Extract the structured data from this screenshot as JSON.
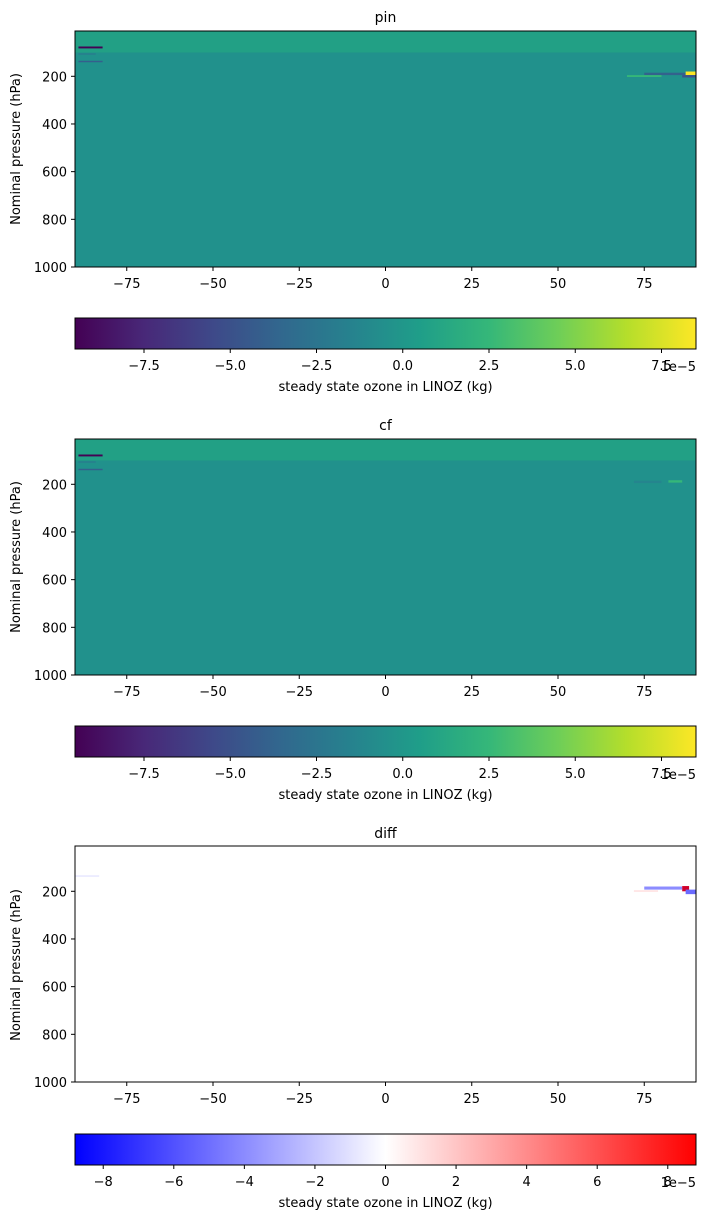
{
  "chart_data": [
    {
      "type": "heatmap",
      "title": "pin",
      "ylabel": "Nominal pressure (hPa)",
      "xlim": [
        -90,
        90
      ],
      "ylim": [
        1000,
        10
      ],
      "xticks": [
        -75,
        -50,
        -25,
        0,
        25,
        50,
        75
      ],
      "xtick_labels": [
        "−75",
        "−50",
        "−25",
        "0",
        "25",
        "50",
        "75"
      ],
      "yticks": [
        200,
        400,
        600,
        800,
        1000
      ],
      "ytick_labels": [
        "200",
        "400",
        "600",
        "800",
        "1000"
      ],
      "colormap": "viridis",
      "background_color": "#21918c",
      "features": [
        {
          "x": [
            -90,
            90
          ],
          "p": [
            10,
            100
          ],
          "color": "#22a085"
        },
        {
          "x": [
            -89,
            -82
          ],
          "p": [
            75,
            83
          ],
          "color": "#440154"
        },
        {
          "x": [
            -89,
            -82
          ],
          "p": [
            135,
            141
          ],
          "color": "#355f8d"
        },
        {
          "x": [
            -89,
            -84
          ],
          "p": [
            104,
            109
          ],
          "color": "#2a788e"
        },
        {
          "x": [
            75,
            87
          ],
          "p": [
            185,
            195
          ],
          "color": "#33628d"
        },
        {
          "x": [
            87,
            90
          ],
          "p": [
            180,
            195
          ],
          "color": "#fde725"
        },
        {
          "x": [
            86,
            90
          ],
          "p": [
            195,
            205
          ],
          "color": "#3b528b"
        },
        {
          "x": [
            70,
            80
          ],
          "p": [
            195,
            203
          ],
          "color": "#35b779"
        }
      ],
      "colorbar": {
        "label": "steady state ozone in LINOZ (kg)",
        "range": [
          -9.5,
          8.5
        ],
        "ticks": [
          -7.5,
          -5.0,
          -2.5,
          0.0,
          2.5,
          5.0,
          7.5
        ],
        "tick_labels": [
          "−7.5",
          "−5.0",
          "−2.5",
          "0.0",
          "2.5",
          "5.0",
          "7.5"
        ],
        "offset_label": "1e−5",
        "colors": [
          "#440154",
          "#482878",
          "#3e4989",
          "#31688e",
          "#26828e",
          "#1f9e89",
          "#35b779",
          "#6ece58",
          "#b5de2b",
          "#fde725"
        ]
      }
    },
    {
      "type": "heatmap",
      "title": "cf",
      "ylabel": "Nominal pressure (hPa)",
      "xlim": [
        -90,
        90
      ],
      "ylim": [
        1000,
        10
      ],
      "xticks": [
        -75,
        -50,
        -25,
        0,
        25,
        50,
        75
      ],
      "xtick_labels": [
        "−75",
        "−50",
        "−25",
        "0",
        "25",
        "50",
        "75"
      ],
      "yticks": [
        200,
        400,
        600,
        800,
        1000
      ],
      "ytick_labels": [
        "200",
        "400",
        "600",
        "800",
        "1000"
      ],
      "colormap": "viridis",
      "background_color": "#21918c",
      "features": [
        {
          "x": [
            -90,
            90
          ],
          "p": [
            10,
            100
          ],
          "color": "#22a085"
        },
        {
          "x": [
            -89,
            -82
          ],
          "p": [
            75,
            83
          ],
          "color": "#440154"
        },
        {
          "x": [
            -89,
            -82
          ],
          "p": [
            135,
            141
          ],
          "color": "#355f8d"
        },
        {
          "x": [
            -89,
            -84
          ],
          "p": [
            104,
            109
          ],
          "color": "#2a788e"
        },
        {
          "x": [
            82,
            86
          ],
          "p": [
            183,
            193
          ],
          "color": "#35b779"
        },
        {
          "x": [
            72,
            80
          ],
          "p": [
            185,
            195
          ],
          "color": "#25858e"
        }
      ],
      "colorbar": {
        "label": "steady state ozone in LINOZ (kg)",
        "range": [
          -9.5,
          8.5
        ],
        "ticks": [
          -7.5,
          -5.0,
          -2.5,
          0.0,
          2.5,
          5.0,
          7.5
        ],
        "tick_labels": [
          "−7.5",
          "−5.0",
          "−2.5",
          "0.0",
          "2.5",
          "5.0",
          "7.5"
        ],
        "offset_label": "1e−5",
        "colors": [
          "#440154",
          "#482878",
          "#3e4989",
          "#31688e",
          "#26828e",
          "#1f9e89",
          "#35b779",
          "#6ece58",
          "#b5de2b",
          "#fde725"
        ]
      }
    },
    {
      "type": "heatmap",
      "title": "diff",
      "ylabel": "Nominal pressure (hPa)",
      "xlim": [
        -90,
        90
      ],
      "ylim": [
        1000,
        10
      ],
      "xticks": [
        -75,
        -50,
        -25,
        0,
        25,
        50,
        75
      ],
      "xtick_labels": [
        "−75",
        "−50",
        "−25",
        "0",
        "25",
        "50",
        "75"
      ],
      "yticks": [
        200,
        400,
        600,
        800,
        1000
      ],
      "ytick_labels": [
        "200",
        "400",
        "600",
        "800",
        "1000"
      ],
      "colormap": "bwr",
      "background_color": "#ffffff",
      "features": [
        {
          "x": [
            -90,
            -83
          ],
          "p": [
            132,
            140
          ],
          "color": "#ececff"
        },
        {
          "x": [
            72,
            79
          ],
          "p": [
            195,
            203
          ],
          "color": "#ffe6e6"
        },
        {
          "x": [
            75,
            86
          ],
          "p": [
            180,
            193
          ],
          "color": "#8c8cff"
        },
        {
          "x": [
            86,
            88
          ],
          "p": [
            178,
            200
          ],
          "color": "#d0002a"
        },
        {
          "x": [
            87,
            90
          ],
          "p": [
            193,
            212
          ],
          "color": "#6a6aff"
        }
      ],
      "colorbar": {
        "label": "steady state ozone in LINOZ (kg)",
        "range": [
          -8.8,
          8.8
        ],
        "ticks": [
          -8,
          -6,
          -4,
          -2,
          0,
          2,
          4,
          6,
          8
        ],
        "tick_labels": [
          "−8",
          "−6",
          "−4",
          "−2",
          "0",
          "2",
          "4",
          "6",
          "8"
        ],
        "offset_label": "1e−5",
        "colors": [
          "#0000ff",
          "#ffffff",
          "#ff0000"
        ]
      }
    }
  ]
}
